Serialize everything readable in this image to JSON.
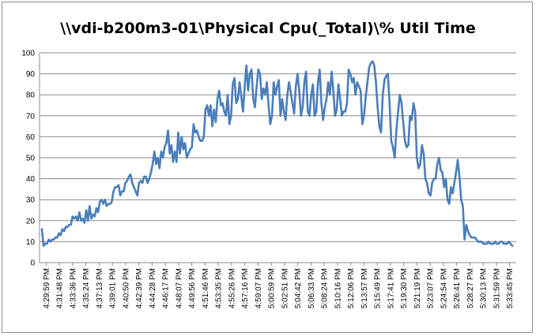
{
  "chart_data": {
    "type": "line",
    "title": "\\\\vdi-b200m3-01\\Physical Cpu(_Total)\\% Util Time",
    "xlabel": "",
    "ylabel": "",
    "ylim": [
      0,
      100
    ],
    "yticks": [
      0,
      10,
      20,
      30,
      40,
      50,
      60,
      70,
      80,
      90,
      100
    ],
    "grid": true,
    "legend": "none",
    "series_color": "#4a7ebb",
    "x_tick_labels": [
      "4:29:59 PM",
      "4:31:48 PM",
      "4:33:36 PM",
      "4:35:24 PM",
      "4:37:13 PM",
      "4:39:01 PM",
      "4:40:50 PM",
      "4:42:39 PM",
      "4:44:28 PM",
      "4:46:17 PM",
      "4:48:07 PM",
      "4:49:56 PM",
      "4:51:46 PM",
      "4:53:35 PM",
      "4:55:26 PM",
      "4:57:16 PM",
      "4:59:07 PM",
      "5:00:59 PM",
      "5:02:51 PM",
      "5:04:42 PM",
      "5:06:33 PM",
      "5:08:24 PM",
      "5:10:16 PM",
      "5:12:06 PM",
      "5:13:57 PM",
      "5:15:49 PM",
      "5:17:41 PM",
      "5:19:30 PM",
      "5:21:19 PM",
      "5:23:07 PM",
      "5:24:54 PM",
      "5:26:41 PM",
      "5:28:27 PM",
      "5:30:13 PM",
      "5:31:59 PM",
      "5:33:45 PM"
    ],
    "series": [
      {
        "values": [
          16,
          8,
          9,
          9,
          11,
          10,
          11,
          11,
          12,
          12,
          14,
          13,
          16,
          15,
          17,
          17,
          18,
          18,
          22,
          21,
          22,
          20,
          24,
          20,
          21,
          19,
          25,
          20,
          27,
          21,
          23,
          22,
          26,
          24,
          29,
          30,
          28,
          30,
          27,
          28,
          28,
          29,
          34,
          36,
          36,
          37,
          32,
          34,
          34,
          38,
          39,
          41,
          42,
          38,
          36,
          34,
          32,
          38,
          39,
          38,
          41,
          41,
          38,
          40,
          43,
          47,
          53,
          47,
          50,
          45,
          53,
          50,
          55,
          57,
          63,
          52,
          56,
          48,
          53,
          48,
          62,
          52,
          60,
          54,
          57,
          50,
          52,
          54,
          55,
          66,
          62,
          63,
          60,
          58,
          58,
          60,
          73,
          75,
          70,
          75,
          65,
          73,
          67,
          78,
          82,
          75,
          76,
          72,
          70,
          80,
          66,
          70,
          85,
          88,
          76,
          78,
          86,
          79,
          72,
          84,
          94,
          82,
          90,
          92,
          78,
          74,
          84,
          92,
          90,
          78,
          83,
          80,
          86,
          75,
          66,
          70,
          86,
          80,
          84,
          87,
          70,
          78,
          72,
          68,
          80,
          86,
          81,
          76,
          71,
          84,
          90,
          82,
          70,
          74,
          86,
          91,
          72,
          70,
          80,
          85,
          70,
          72,
          86,
          92,
          76,
          68,
          74,
          78,
          86,
          80,
          91,
          82,
          70,
          73,
          85,
          78,
          70,
          72,
          72,
          76,
          92,
          90,
          86,
          88,
          80,
          86,
          84,
          82,
          66,
          70,
          79,
          86,
          93,
          95,
          96,
          94,
          86,
          74,
          65,
          62,
          80,
          87,
          89,
          90,
          76,
          58,
          55,
          50,
          63,
          72,
          80,
          76,
          67,
          58,
          55,
          56,
          70,
          68,
          76,
          72,
          50,
          45,
          47,
          56,
          52,
          40,
          38,
          33,
          32,
          38,
          40,
          40,
          47,
          50,
          44,
          43,
          36,
          40,
          30,
          28,
          36,
          33,
          38,
          43,
          49,
          41,
          30,
          27,
          11,
          18,
          15,
          13,
          12,
          12,
          12,
          11,
          10,
          10,
          10,
          9,
          9,
          9,
          10,
          9,
          9,
          9,
          10,
          9,
          9,
          10,
          10,
          9,
          9,
          9,
          10,
          9,
          8
        ]
      }
    ]
  }
}
